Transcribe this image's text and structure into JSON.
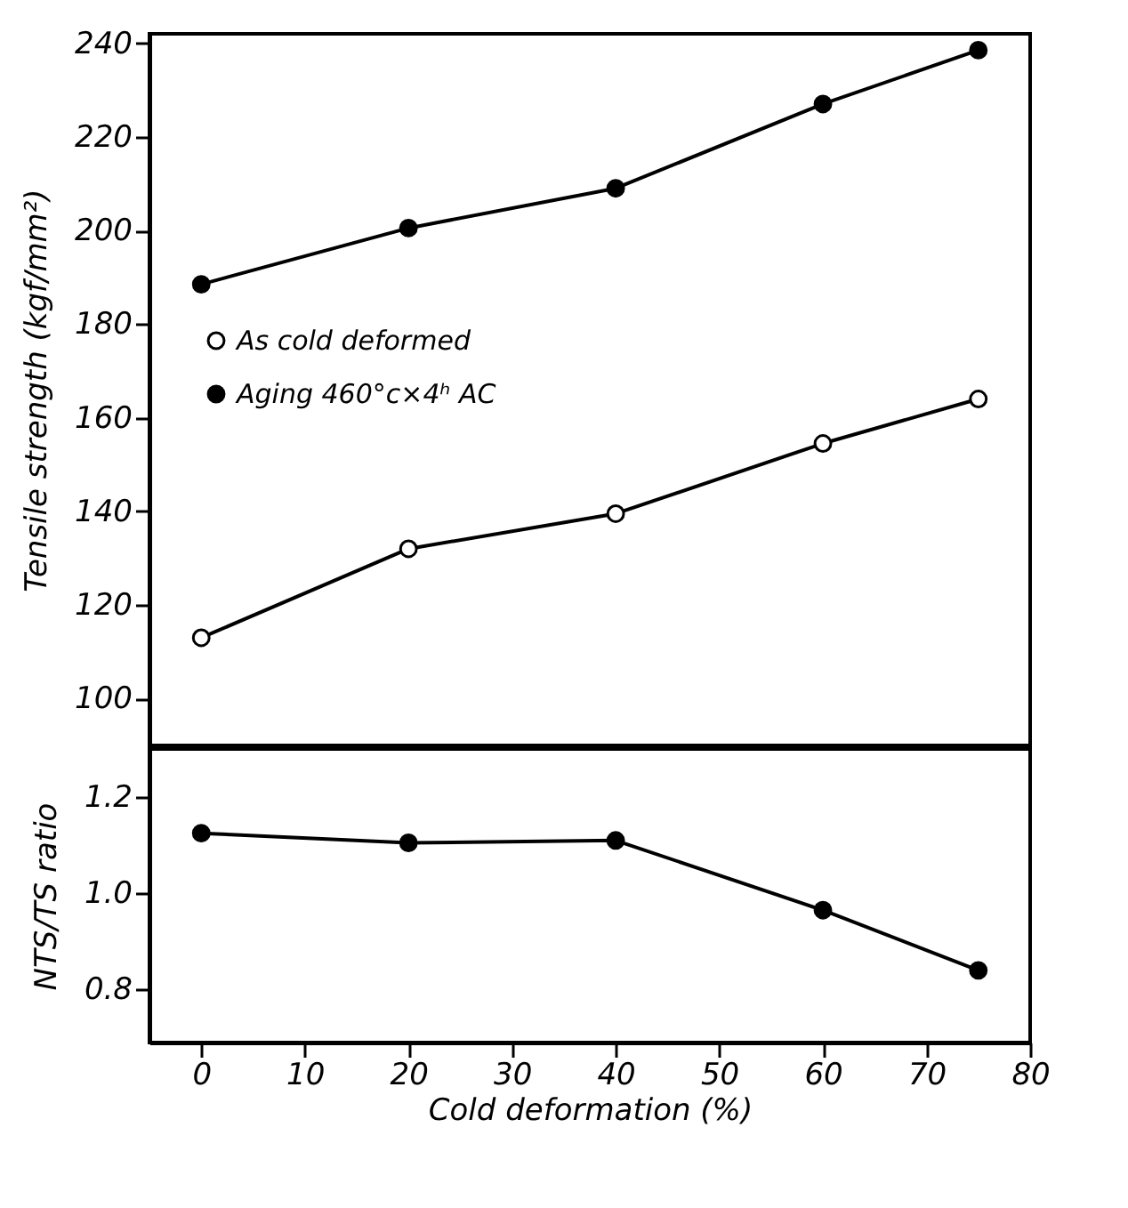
{
  "chart_data": [
    {
      "type": "line",
      "ylabel": "Tensile strength (kgf/mm²)",
      "x": [
        0,
        20,
        40,
        60,
        75
      ],
      "xlim": [
        -5,
        80
      ],
      "xticks": [
        0,
        10,
        20,
        30,
        40,
        50,
        60,
        70,
        80
      ],
      "ylim": [
        90,
        242
      ],
      "yticks": [
        100,
        120,
        140,
        160,
        180,
        200,
        220,
        240
      ],
      "tick_labels": "y",
      "marker": "circle",
      "legend": "left",
      "grid": false,
      "series": [
        {
          "name": "As cold deformed",
          "color": "#ffffff",
          "values": [
            113,
            132,
            139.5,
            154.5,
            164
          ]
        },
        {
          "name": "Aging 460°c×4ʰ AC",
          "color": "#000000",
          "values": [
            188.5,
            200.5,
            209,
            227,
            238.5
          ]
        }
      ]
    },
    {
      "type": "line",
      "ylabel": "NTS/TS ratio",
      "xlabel": "Cold deformation (%)",
      "x": [
        0,
        20,
        40,
        60,
        75
      ],
      "xlim": [
        -5,
        80
      ],
      "xticks": [
        0,
        10,
        20,
        30,
        40,
        50,
        60,
        70,
        80
      ],
      "ylim": [
        0.69,
        1.3
      ],
      "yticks": [
        0.8,
        {
          "value": 1.0,
          "label": "1.0"
        },
        1.2
      ],
      "marker": "circle",
      "grid": false,
      "series": [
        {
          "color": "#000000",
          "values": [
            1.125,
            1.105,
            1.11,
            0.965,
            0.84
          ]
        }
      ]
    }
  ]
}
